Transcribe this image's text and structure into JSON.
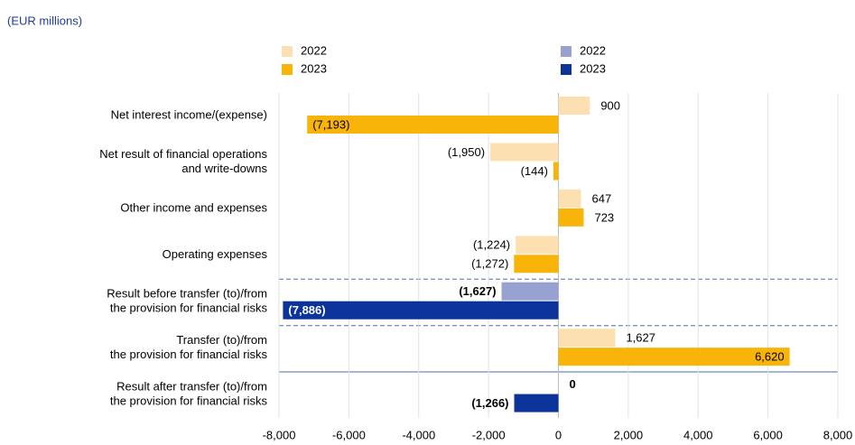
{
  "chart_data": {
    "type": "hbar",
    "subtitle": "(EUR millions)",
    "categories": [
      "Net interest income/(expense)",
      "Net result of financial operations\nand write-downs",
      "Other income and expenses",
      "Operating expenses",
      "Result before transfer (to)/from\nthe provision for financial risks",
      "Transfer (to)/from\nthe provision for financial risks",
      "Result after transfer (to)/from\nthe provision for financial risks"
    ],
    "series": [
      {
        "name": "2022",
        "color": "#fde0b2",
        "values": [
          900,
          -1950,
          647,
          -1224,
          null,
          1627,
          null
        ],
        "value_labels": [
          "900",
          "(1,950)",
          "647",
          "(1,224)",
          null,
          "1,627",
          null
        ]
      },
      {
        "name": "2023",
        "color": "#f9b40a",
        "values": [
          -7193,
          -144,
          723,
          -1272,
          null,
          6620,
          null
        ],
        "value_labels": [
          "(7,193)",
          "(144)",
          "723",
          "(1,272)",
          null,
          "6,620",
          null
        ]
      },
      {
        "name": "2022",
        "color": "#98a2d0",
        "values": [
          null,
          null,
          null,
          null,
          -1627,
          null,
          0
        ],
        "value_labels": [
          null,
          null,
          null,
          null,
          "(1,627)",
          null,
          "0"
        ]
      },
      {
        "name": "2023",
        "color": "#0b339a",
        "values": [
          null,
          null,
          null,
          null,
          -7886,
          null,
          -1266
        ],
        "value_labels": [
          null,
          null,
          null,
          null,
          "(7,886)",
          null,
          "(1,266)"
        ]
      }
    ],
    "xlim": [
      -8000,
      8000
    ],
    "xticks": [
      {
        "value": -8000,
        "label": "-8,000"
      },
      {
        "value": -6000,
        "label": "-6,000"
      },
      {
        "value": -4000,
        "label": "-4,000"
      },
      {
        "value": -2000,
        "label": "-2,000"
      },
      0,
      {
        "value": 2000,
        "label": "2,000"
      },
      {
        "value": 4000,
        "label": "4,000"
      },
      {
        "value": 6000,
        "label": "6,000"
      },
      {
        "value": 8000,
        "label": "8,000"
      }
    ],
    "grid": true
  }
}
